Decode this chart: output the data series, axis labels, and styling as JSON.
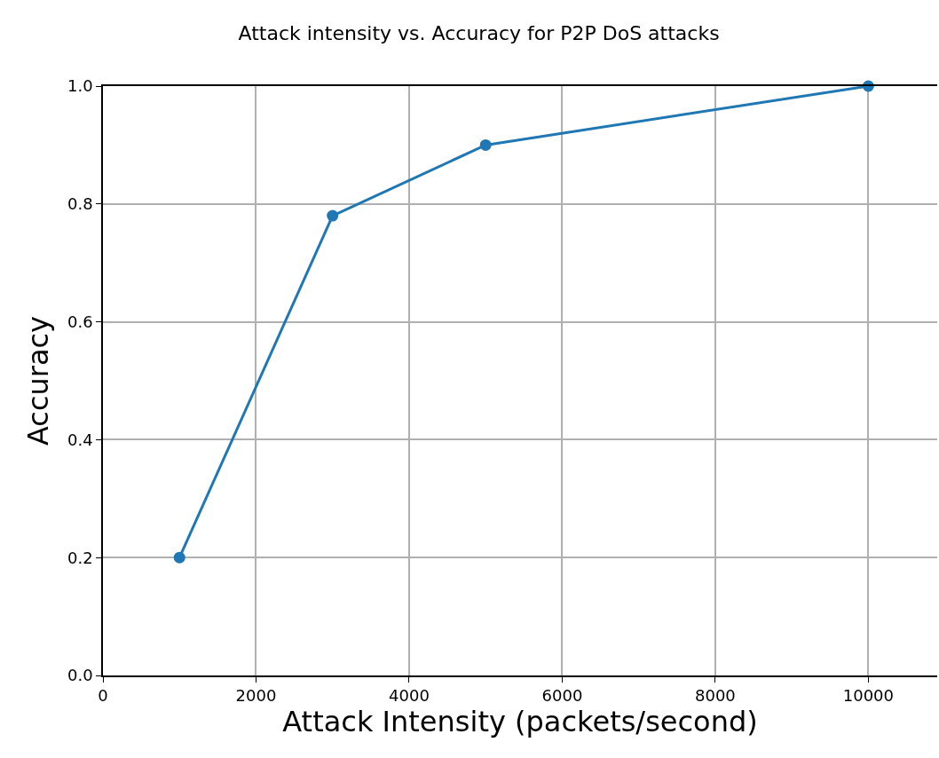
{
  "chart_data": {
    "type": "line",
    "title": "Attack intensity vs. Accuracy for P2P DoS attacks",
    "xlabel": "Attack Intensity (packets/second)",
    "ylabel": "Accuracy",
    "x": [
      1000,
      3000,
      5000,
      10000
    ],
    "series": [
      {
        "color": "#1f77b4",
        "values": [
          0.2,
          0.78,
          0.9,
          1.0
        ]
      }
    ],
    "xlim": [
      0,
      10900
    ],
    "xticks": [
      0,
      2000,
      4000,
      6000,
      8000,
      10000
    ],
    "ylim": [
      0,
      1
    ],
    "yticks": [
      {
        "value": 0,
        "label": "0.0"
      },
      {
        "value": 0.2,
        "label": "0.2"
      },
      {
        "value": 0.4,
        "label": "0.4"
      },
      {
        "value": 0.6,
        "label": "0.6"
      },
      {
        "value": 0.8,
        "label": "0.8"
      },
      {
        "value": 1,
        "label": "1.0"
      }
    ],
    "grid": true,
    "marker": "circle",
    "line_style": "solid"
  }
}
